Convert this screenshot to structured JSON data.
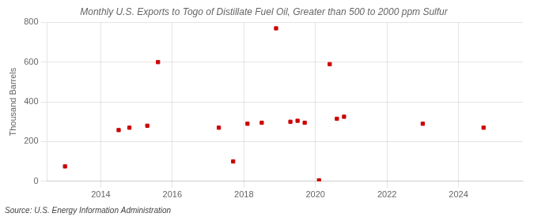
{
  "chart_data": {
    "type": "scatter",
    "title": "Monthly U.S. Exports to Togo of Distillate Fuel Oil, Greater than 500 to 2000 ppm Sulfur",
    "y_label": "Thousand Barrels",
    "annotations": [
      "Source: U.S. Energy Information Administration"
    ],
    "x": [
      2013.0,
      2014.5,
      2014.8,
      2015.3,
      2015.6,
      2017.3,
      2017.7,
      2018.1,
      2018.5,
      2018.9,
      2019.3,
      2019.5,
      2019.7,
      2020.1,
      2020.4,
      2020.6,
      2020.8,
      2023.0,
      2024.7
    ],
    "values": [
      75,
      258,
      270,
      280,
      600,
      270,
      100,
      290,
      295,
      770,
      300,
      305,
      295,
      5,
      590,
      315,
      325,
      290,
      270
    ],
    "color": "#cc0000",
    "marker": "square",
    "xlim": [
      2012.5,
      2025.8
    ],
    "ylim": [
      0,
      800
    ],
    "xticks": [
      2014,
      2016,
      2018,
      2020,
      2022,
      2024
    ],
    "yticks": [
      0,
      200,
      400,
      600,
      800
    ],
    "grid": true
  }
}
